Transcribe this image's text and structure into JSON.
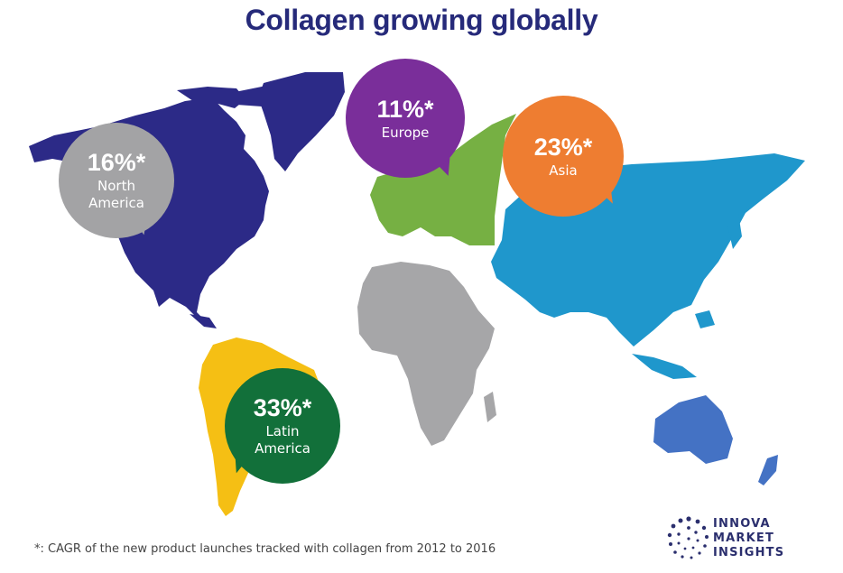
{
  "title": "Collagen growing globally",
  "regions": [
    {
      "id": "north-america",
      "value": "16%*",
      "label_lines": [
        "North",
        "America"
      ],
      "map_color": "#2c2a87",
      "bubble_color": "#a3a3a5"
    },
    {
      "id": "europe",
      "value": "11%*",
      "label_lines": [
        "Europe"
      ],
      "map_color": "#76b043",
      "bubble_color": "#7a2e9a"
    },
    {
      "id": "asia",
      "value": "23%*",
      "label_lines": [
        "Asia"
      ],
      "map_color": "#1f97cc",
      "bubble_color": "#ee7d31"
    },
    {
      "id": "latin-america",
      "value": "33%*",
      "label_lines": [
        "Latin",
        "America"
      ],
      "map_color": "#f5bf14",
      "bubble_color": "#12703a"
    },
    {
      "id": "africa",
      "map_color": "#a6a6a8"
    },
    {
      "id": "oceania",
      "map_color": "#4472c4"
    }
  ],
  "footnote": "*: CAGR of the new product launches tracked with collagen from 2012 to 2016",
  "logo": {
    "lines": [
      "INNOVA",
      "MARKET",
      "INSIGHTS"
    ],
    "color": "#2b2f6e"
  }
}
